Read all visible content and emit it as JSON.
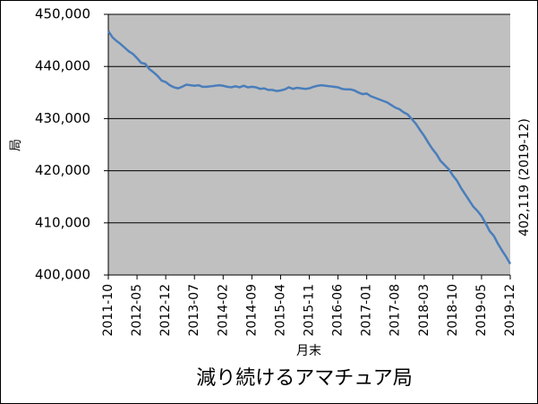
{
  "chart_data": {
    "type": "line",
    "title": "減り続けるアマチュア局",
    "y_label": "局",
    "x_label": "月末",
    "annotation": "402,119 (2019-12)",
    "categories": [
      "2011-10",
      null,
      null,
      null,
      null,
      null,
      null,
      "2012-05",
      null,
      null,
      null,
      null,
      null,
      null,
      "2012-12",
      null,
      null,
      null,
      null,
      null,
      null,
      "2013-07",
      null,
      null,
      null,
      null,
      null,
      null,
      "2014-02",
      null,
      null,
      null,
      null,
      null,
      null,
      "2014-09",
      null,
      null,
      null,
      null,
      null,
      null,
      "2015-04",
      null,
      null,
      null,
      null,
      null,
      null,
      "2015-11",
      null,
      null,
      null,
      null,
      null,
      null,
      "2016-06",
      null,
      null,
      null,
      null,
      null,
      null,
      "2017-01",
      null,
      null,
      null,
      null,
      null,
      null,
      "2017-08",
      null,
      null,
      null,
      null,
      null,
      null,
      "2018-03",
      null,
      null,
      null,
      null,
      null,
      null,
      "2018-10",
      null,
      null,
      null,
      null,
      null,
      null,
      "2019-05",
      null,
      null,
      null,
      null,
      null,
      null,
      "2019-12"
    ],
    "series": [
      {
        "name": "局",
        "color": "#4a7ebb",
        "values": [
          446800,
          445600,
          444900,
          444300,
          443600,
          442900,
          442400,
          441600,
          440700,
          440500,
          439500,
          438900,
          438200,
          437300,
          437000,
          436400,
          436000,
          435800,
          436100,
          436500,
          436400,
          436300,
          436400,
          436100,
          436100,
          436200,
          436300,
          436400,
          436300,
          436100,
          436000,
          436200,
          436000,
          436300,
          436000,
          436100,
          436000,
          435700,
          435800,
          435500,
          435500,
          435300,
          435400,
          435600,
          436000,
          435700,
          435900,
          435800,
          435700,
          435800,
          436100,
          436300,
          436400,
          436300,
          436200,
          436100,
          436000,
          435700,
          435600,
          435600,
          435400,
          435000,
          434700,
          434800,
          434300,
          434000,
          433700,
          433400,
          433100,
          432600,
          432100,
          431800,
          431200,
          430800,
          429900,
          429000,
          427800,
          426700,
          425400,
          424200,
          423200,
          421900,
          421100,
          420300,
          419100,
          418100,
          416700,
          415500,
          414300,
          413100,
          412300,
          411300,
          409900,
          408400,
          407500,
          406000,
          404700,
          403500,
          402119
        ]
      }
    ],
    "ylim": [
      400000,
      450000
    ],
    "yticks": [
      {
        "value": 400000,
        "label": "400,000"
      },
      {
        "value": 410000,
        "label": "410,000"
      },
      {
        "value": 420000,
        "label": "420,000"
      },
      {
        "value": 430000,
        "label": "430,000"
      },
      {
        "value": 440000,
        "label": "440,000"
      },
      {
        "value": 450000,
        "label": "450,000"
      }
    ],
    "grid": true,
    "plot_background": "#c0c0c0"
  }
}
